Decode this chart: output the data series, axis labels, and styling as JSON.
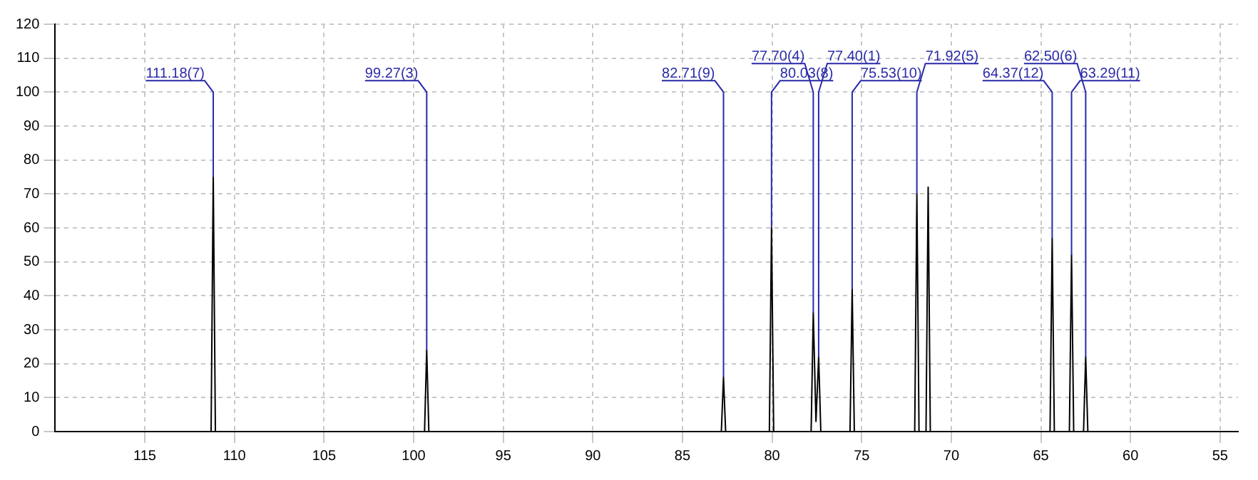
{
  "chart_data": {
    "type": "line",
    "marker": "none",
    "line_style": "solid",
    "grid": true,
    "legend": false,
    "xlim": [
      120,
      54
    ],
    "xticks": [
      115,
      110,
      105,
      100,
      95,
      90,
      85,
      80,
      75,
      70,
      65,
      60,
      55
    ],
    "ylim": [
      0,
      120
    ],
    "yticks": [
      0,
      10,
      20,
      30,
      40,
      50,
      60,
      70,
      80,
      90,
      100,
      110,
      120
    ],
    "series": [
      {
        "color": "#000000",
        "x": [
          120,
          111.3,
          111.18,
          111.06,
          99.39,
          99.27,
          99.15,
          82.83,
          82.71,
          82.59,
          80.15,
          80.03,
          79.91,
          77.82,
          77.7,
          77.55,
          77.4,
          77.28,
          75.65,
          75.53,
          75.41,
          72.04,
          71.92,
          71.8,
          71.41,
          71.29,
          71.17,
          64.49,
          64.37,
          64.25,
          63.41,
          63.29,
          63.17,
          62.62,
          62.5,
          62.38,
          54
        ],
        "values": [
          0,
          0,
          75,
          0,
          0,
          24,
          0,
          0,
          16,
          0,
          0,
          60,
          0,
          0,
          35,
          3,
          22,
          0,
          0,
          42,
          0,
          0,
          70,
          0,
          0,
          72,
          0,
          0,
          57,
          0,
          0,
          52,
          0,
          0,
          22,
          0,
          0
        ]
      }
    ],
    "annotations": [
      {
        "text": "111.18(7)",
        "x": 111.18,
        "y": 75
      },
      {
        "text": "99.27(3)",
        "x": 99.27,
        "y": 24
      },
      {
        "text": "82.71(9)",
        "x": 82.71,
        "y": 16
      },
      {
        "text": "80.03(8)",
        "x": 80.03,
        "y": 60
      },
      {
        "text": "77.70(4)",
        "x": 77.7,
        "y": 35
      },
      {
        "text": "77.40(1)",
        "x": 77.4,
        "y": 22
      },
      {
        "text": "75.53(10)",
        "x": 75.53,
        "y": 42
      },
      {
        "text": "71.92(5)",
        "x": 71.92,
        "y": 70
      },
      {
        "text": "64.37(12)",
        "x": 64.37,
        "y": 57
      },
      {
        "text": "63.29(11)",
        "x": 63.29,
        "y": 52
      },
      {
        "text": "62.50(6)",
        "x": 62.5,
        "y": 22
      }
    ]
  }
}
